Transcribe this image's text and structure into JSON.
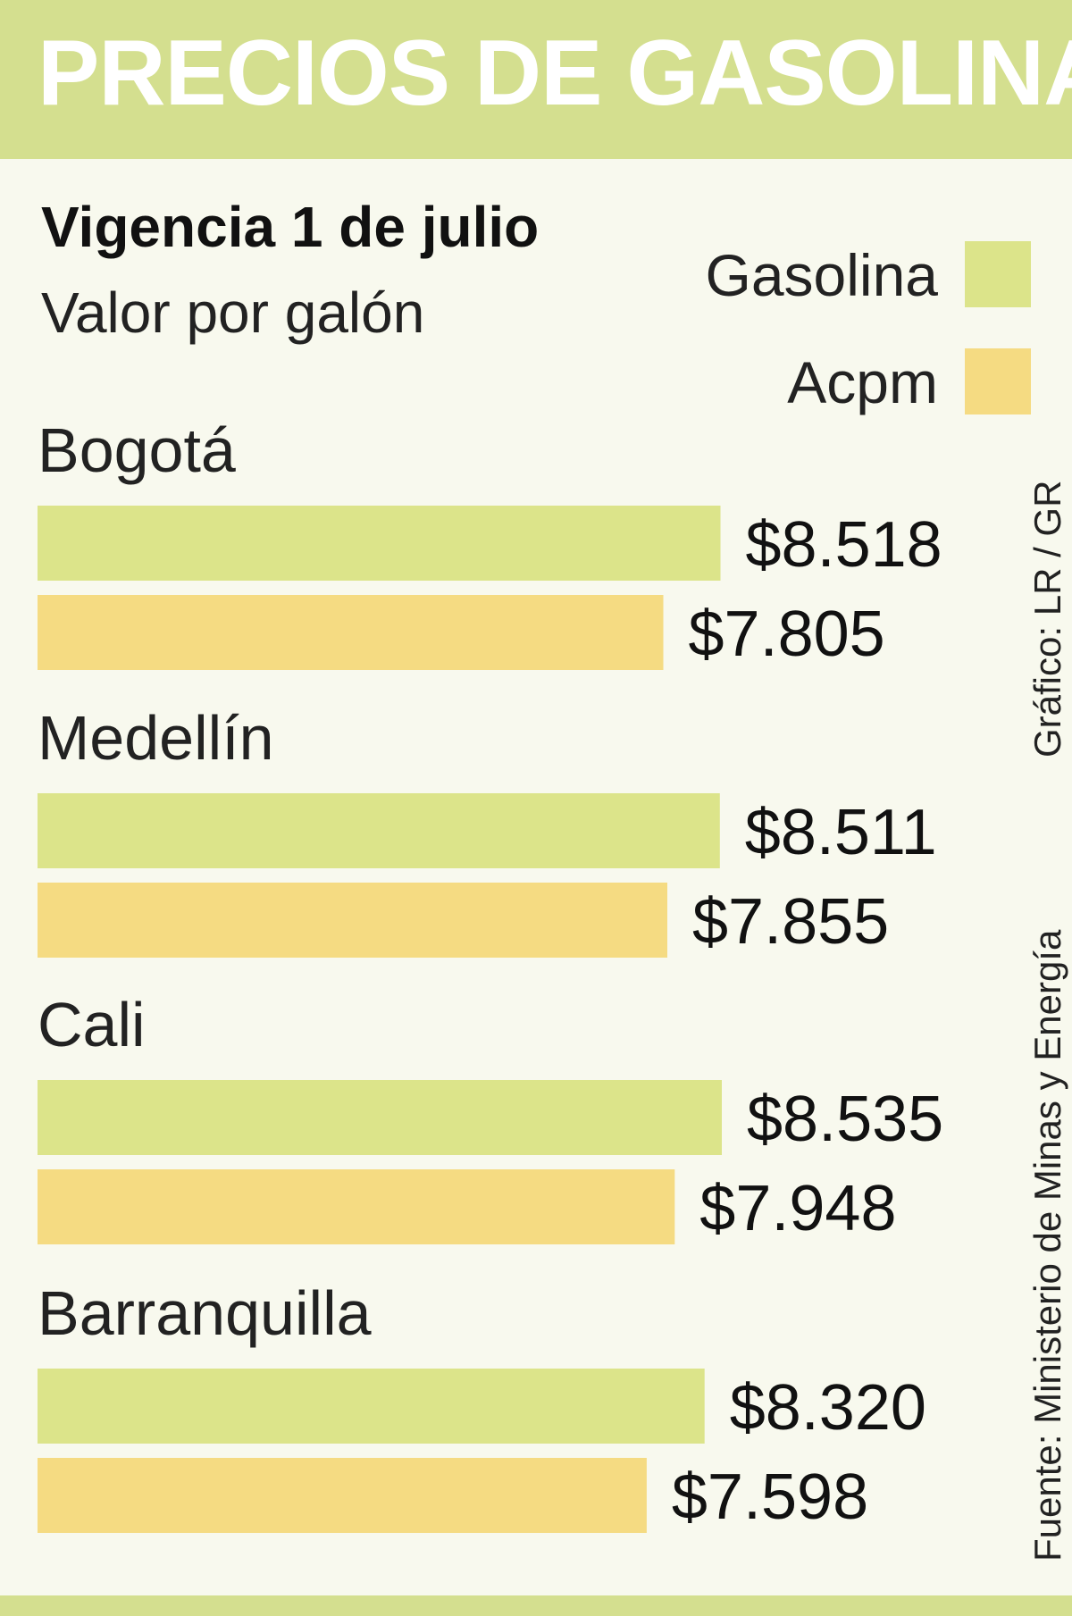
{
  "title": "PRECIOS DE GASOLINA",
  "subtitle": "Vigencia 1 de julio",
  "unit_label": "Valor por galón",
  "credit": "Gráfico: LR / GR",
  "source": "Fuente: Ministerio de Minas y Energía",
  "colors": {
    "header": "#d4df8f",
    "gasolina": "#dce48a",
    "acpm": "#f5db82",
    "background": "#f8f9ee"
  },
  "chart_data": {
    "type": "bar",
    "orientation": "horizontal",
    "categories": [
      "Bogotá",
      "Medellín",
      "Cali",
      "Barranquilla"
    ],
    "series": [
      {
        "name": "Gasolina",
        "values": [
          8518,
          8511,
          8535,
          8320
        ],
        "labels": [
          "$8.518",
          "$8.511",
          "$8.535",
          "$8.320"
        ]
      },
      {
        "name": "Acpm",
        "values": [
          7805,
          7855,
          7948,
          7598
        ],
        "labels": [
          "$7.805",
          "$7.855",
          "$7.948",
          "$7.598"
        ]
      }
    ],
    "legend": "top-right",
    "grid": false
  }
}
